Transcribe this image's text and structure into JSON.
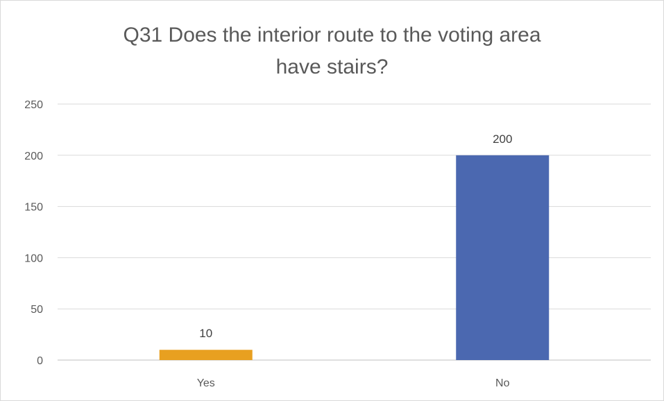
{
  "chart_data": {
    "type": "bar",
    "title_lines": [
      "Q31 Does the interior route to the voting area",
      "have stairs?"
    ],
    "categories": [
      "Yes",
      "No"
    ],
    "values": [
      10,
      200
    ],
    "data_labels": [
      "10",
      "200"
    ],
    "bar_colors": [
      "#e8a020",
      "#4b68b0"
    ],
    "ylim": [
      0,
      250
    ],
    "yticks": [
      0,
      50,
      100,
      150,
      200,
      250
    ],
    "grid": true,
    "legend": "none"
  }
}
